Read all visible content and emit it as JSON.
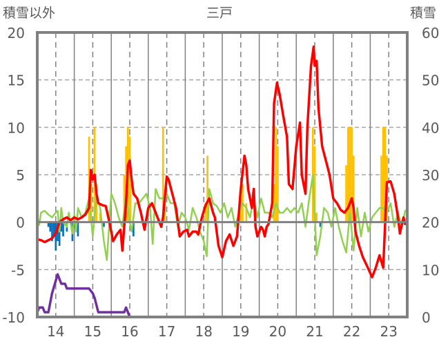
{
  "chart_data": {
    "type": "line",
    "title": "三戸",
    "ylabel_left": "積雪以外",
    "ylabel_right": "積雪",
    "xlim": [
      13.5,
      23.5
    ],
    "ylim_left": [
      -10,
      20
    ],
    "ylim_right": [
      0,
      60
    ],
    "x_ticks": [
      "14",
      "15",
      "16",
      "17",
      "18",
      "19",
      "20",
      "21",
      "22",
      "23"
    ],
    "left_ticks": [
      "20",
      "15",
      "10",
      "5",
      "0",
      "-5",
      "-10"
    ],
    "right_ticks": [
      "60",
      "50",
      "40",
      "30",
      "20",
      "10",
      "0"
    ],
    "grid": true,
    "colors": {
      "red": "#ff0000",
      "green": "#92d050",
      "orange": "#ffc000",
      "blue": "#0070c0",
      "purple": "#7030a0",
      "axis": "#808080"
    },
    "series": [
      {
        "name": "red",
        "axis": "left",
        "points": [
          [
            13.5,
            -1.8
          ],
          [
            13.6,
            -1.9
          ],
          [
            13.7,
            -2.1
          ],
          [
            13.8,
            -1.9
          ],
          [
            13.9,
            -1.7
          ],
          [
            14.0,
            -1.2
          ],
          [
            14.1,
            0
          ],
          [
            14.2,
            0.3
          ],
          [
            14.3,
            0.5
          ],
          [
            14.4,
            0.2
          ],
          [
            14.5,
            0.5
          ],
          [
            14.6,
            0.3
          ],
          [
            14.7,
            0.5
          ],
          [
            14.8,
            0.8
          ],
          [
            14.9,
            1.5
          ],
          [
            14.95,
            5.5
          ],
          [
            15.0,
            4.5
          ],
          [
            15.05,
            5.0
          ],
          [
            15.1,
            3
          ],
          [
            15.15,
            2
          ],
          [
            15.25,
            1.8
          ],
          [
            15.35,
            1.7
          ],
          [
            15.45,
            0
          ],
          [
            15.55,
            -2.0
          ],
          [
            15.65,
            -1.3
          ],
          [
            15.75,
            -0.8
          ],
          [
            15.8,
            -3.0
          ],
          [
            15.85,
            -0.5
          ],
          [
            15.9,
            2
          ],
          [
            15.95,
            6.0
          ],
          [
            16.0,
            6.5
          ],
          [
            16.05,
            4.5
          ],
          [
            16.1,
            3
          ],
          [
            16.2,
            2.5
          ],
          [
            16.3,
            1.0
          ],
          [
            16.4,
            -0.8
          ],
          [
            16.5,
            1.5
          ],
          [
            16.6,
            2.0
          ],
          [
            16.7,
            1.0
          ],
          [
            16.8,
            0
          ],
          [
            16.85,
            -0.5
          ],
          [
            16.9,
            0.5
          ],
          [
            17.0,
            4.8
          ],
          [
            17.05,
            4.5
          ],
          [
            17.15,
            3.0
          ],
          [
            17.25,
            1.5
          ],
          [
            17.3,
            0
          ],
          [
            17.35,
            -1.5
          ],
          [
            17.45,
            -1.0
          ],
          [
            17.55,
            -0.8
          ],
          [
            17.6,
            -1.5
          ],
          [
            17.7,
            -1.0
          ],
          [
            17.8,
            -1.0
          ],
          [
            17.85,
            -1.3
          ],
          [
            17.95,
            0.5
          ],
          [
            18.05,
            1.8
          ],
          [
            18.15,
            2.5
          ],
          [
            18.25,
            1.0
          ],
          [
            18.3,
            0.5
          ],
          [
            18.4,
            -2.5
          ],
          [
            18.5,
            -3.7
          ],
          [
            18.6,
            -2.0
          ],
          [
            18.7,
            -1.3
          ],
          [
            18.8,
            -2.5
          ],
          [
            18.9,
            -1.5
          ],
          [
            19.0,
            3.5
          ],
          [
            19.1,
            7.0
          ],
          [
            19.15,
            6.0
          ],
          [
            19.2,
            3.5
          ],
          [
            19.3,
            1.5
          ],
          [
            19.35,
            3.5
          ],
          [
            19.4,
            -0.5
          ],
          [
            19.45,
            -1.5
          ],
          [
            19.55,
            -0.5
          ],
          [
            19.6,
            -0.8
          ],
          [
            19.65,
            -1.5
          ],
          [
            19.7,
            -0.5
          ],
          [
            19.75,
            -0.2
          ],
          [
            19.85,
            2
          ],
          [
            19.9,
            12.5
          ],
          [
            19.98,
            14.7
          ],
          [
            20.05,
            13.5
          ],
          [
            20.15,
            11.2
          ],
          [
            20.25,
            9.0
          ],
          [
            20.3,
            4.0
          ],
          [
            20.4,
            3.5
          ],
          [
            20.5,
            8
          ],
          [
            20.6,
            10.5
          ],
          [
            20.65,
            5.0
          ],
          [
            20.75,
            3.0
          ],
          [
            20.8,
            10
          ],
          [
            20.9,
            16.5
          ],
          [
            20.97,
            18.5
          ],
          [
            21.0,
            16.5
          ],
          [
            21.05,
            17.0
          ],
          [
            21.1,
            12
          ],
          [
            21.2,
            8
          ],
          [
            21.3,
            6.5
          ],
          [
            21.4,
            5
          ],
          [
            21.5,
            2.5
          ],
          [
            21.6,
            2.0
          ],
          [
            21.7,
            1.3
          ],
          [
            21.8,
            1.0
          ],
          [
            21.9,
            1.5
          ],
          [
            22.0,
            2.5
          ],
          [
            22.05,
            1.5
          ],
          [
            22.1,
            -1.0
          ],
          [
            22.2,
            -2.5
          ],
          [
            22.3,
            -3.7
          ],
          [
            22.4,
            -4.5
          ],
          [
            22.55,
            -5.8
          ],
          [
            22.65,
            -4.8
          ],
          [
            22.75,
            -3.5
          ],
          [
            22.85,
            -4.8
          ],
          [
            22.95,
            4.2
          ],
          [
            23.05,
            4.3
          ],
          [
            23.15,
            3.0
          ],
          [
            23.25,
            0.5
          ],
          [
            23.3,
            -1.2
          ],
          [
            23.4,
            0.5
          ],
          [
            23.45,
            -0.3
          ]
        ]
      },
      {
        "name": "green",
        "axis": "left",
        "points": [
          [
            13.5,
            0.7
          ],
          [
            13.55,
            -0.3
          ],
          [
            13.6,
            1.0
          ],
          [
            13.7,
            1.2
          ],
          [
            13.8,
            0.8
          ],
          [
            13.9,
            0.5
          ],
          [
            14.0,
            1.0
          ],
          [
            14.05,
            1.2
          ],
          [
            14.1,
            -1.0
          ],
          [
            14.15,
            1.5
          ],
          [
            14.2,
            0
          ],
          [
            14.3,
            -0.5
          ],
          [
            14.35,
            1.0
          ],
          [
            14.45,
            -1.2
          ],
          [
            14.5,
            0.8
          ],
          [
            14.55,
            -1.0
          ],
          [
            14.6,
            1.5
          ],
          [
            14.7,
            0.5
          ],
          [
            14.8,
            1.0
          ],
          [
            14.9,
            2.5
          ],
          [
            15.0,
            -1.5
          ],
          [
            15.1,
            3.0
          ],
          [
            15.2,
            1.5
          ],
          [
            15.3,
            -2.0
          ],
          [
            15.38,
            -4.0
          ],
          [
            15.45,
            0
          ],
          [
            15.5,
            3.0
          ],
          [
            15.6,
            2.0
          ],
          [
            15.7,
            0.5
          ],
          [
            15.8,
            -0.5
          ],
          [
            15.9,
            3.0
          ],
          [
            16.0,
            0
          ],
          [
            16.05,
            -1.0
          ],
          [
            16.15,
            2.0
          ],
          [
            16.25,
            2.0
          ],
          [
            16.35,
            2.5
          ],
          [
            16.45,
            3.0
          ],
          [
            16.55,
            1.5
          ],
          [
            16.62,
            -2.3
          ],
          [
            16.7,
            3.5
          ],
          [
            16.8,
            2.5
          ],
          [
            16.9,
            2.5
          ],
          [
            17.0,
            3.0
          ],
          [
            17.1,
            2.0
          ],
          [
            17.2,
            2.0
          ],
          [
            17.3,
            -0.5
          ],
          [
            17.4,
            1.0
          ],
          [
            17.5,
            0.5
          ],
          [
            17.6,
            -0.8
          ],
          [
            17.7,
            1.5
          ],
          [
            17.8,
            0.5
          ],
          [
            17.9,
            -1.0
          ],
          [
            18.0,
            -2.0
          ],
          [
            18.08,
            -3.6
          ],
          [
            18.15,
            3.5
          ],
          [
            18.25,
            2.0
          ],
          [
            18.35,
            1.7
          ],
          [
            18.45,
            1.0
          ],
          [
            18.55,
            2.0
          ],
          [
            18.65,
            0.5
          ],
          [
            18.75,
            1.5
          ],
          [
            18.85,
            -0.5
          ],
          [
            18.95,
            1.0
          ],
          [
            19.05,
            2.0
          ],
          [
            19.15,
            1.5
          ],
          [
            19.25,
            0.5
          ],
          [
            19.35,
            2.5
          ],
          [
            19.45,
            0.5
          ],
          [
            19.55,
            2.5
          ],
          [
            19.65,
            1.0
          ],
          [
            19.75,
            1.0
          ],
          [
            19.85,
            0.5
          ],
          [
            19.95,
            2.0
          ],
          [
            20.05,
            1.0
          ],
          [
            20.15,
            1.0
          ],
          [
            20.25,
            1.5
          ],
          [
            20.35,
            1.0
          ],
          [
            20.45,
            1.5
          ],
          [
            20.55,
            1.0
          ],
          [
            20.65,
            2.0
          ],
          [
            20.75,
            -0.5
          ],
          [
            20.85,
            2.5
          ],
          [
            20.95,
            5.0
          ],
          [
            21.05,
            -3.5
          ],
          [
            21.15,
            -1.5
          ],
          [
            21.25,
            1.5
          ],
          [
            21.35,
            1.0
          ],
          [
            21.45,
            -0.5
          ],
          [
            21.55,
            1.5
          ],
          [
            21.65,
            -0.5
          ],
          [
            21.75,
            -2.0
          ],
          [
            21.85,
            -3.2
          ],
          [
            21.95,
            1.0
          ],
          [
            22.05,
            -3.0
          ],
          [
            22.15,
            1.5
          ],
          [
            22.25,
            -1.5
          ],
          [
            22.35,
            1.0
          ],
          [
            22.45,
            -1.0
          ],
          [
            22.55,
            0.5
          ],
          [
            22.65,
            1.0
          ],
          [
            22.75,
            1.5
          ],
          [
            22.85,
            1.5
          ],
          [
            22.95,
            1.0
          ],
          [
            23.05,
            2.0
          ],
          [
            23.15,
            -0.5
          ],
          [
            23.25,
            1.0
          ],
          [
            23.35,
            -0.5
          ],
          [
            23.45,
            1.3
          ]
        ]
      },
      {
        "name": "purple",
        "axis": "right",
        "points": [
          [
            13.5,
            1
          ],
          [
            13.55,
            2
          ],
          [
            13.65,
            2
          ],
          [
            13.7,
            1
          ],
          [
            13.8,
            1
          ],
          [
            13.9,
            5
          ],
          [
            14.05,
            9
          ],
          [
            14.15,
            7
          ],
          [
            14.25,
            7
          ],
          [
            14.3,
            6
          ],
          [
            14.9,
            6
          ],
          [
            15.0,
            5
          ],
          [
            15.05,
            4
          ],
          [
            15.15,
            1
          ],
          [
            15.85,
            1
          ],
          [
            15.9,
            2
          ],
          [
            15.95,
            1
          ],
          [
            16.0,
            0
          ],
          [
            23.5,
            0
          ]
        ]
      },
      {
        "name": "orange",
        "type": "bar",
        "axis": "left",
        "points": [
          [
            14.9,
            9
          ],
          [
            14.95,
            4
          ],
          [
            15.05,
            10
          ],
          [
            15.1,
            4
          ],
          [
            15.2,
            1
          ],
          [
            15.85,
            5
          ],
          [
            15.9,
            8
          ],
          [
            15.95,
            10
          ],
          [
            16.0,
            9
          ],
          [
            16.02,
            4
          ],
          [
            16.9,
            10
          ],
          [
            16.95,
            3
          ],
          [
            18.05,
            2
          ],
          [
            18.1,
            7
          ],
          [
            19.0,
            2
          ],
          [
            19.05,
            4
          ],
          [
            19.15,
            2
          ],
          [
            19.9,
            4
          ],
          [
            19.95,
            10
          ],
          [
            20.0,
            8
          ],
          [
            20.95,
            10
          ],
          [
            21.0,
            8
          ],
          [
            21.05,
            1
          ],
          [
            21.85,
            6
          ],
          [
            21.9,
            10
          ],
          [
            21.95,
            10
          ],
          [
            22.0,
            10
          ],
          [
            22.05,
            7
          ],
          [
            22.8,
            7
          ],
          [
            22.85,
            10
          ],
          [
            22.9,
            10
          ],
          [
            22.95,
            7
          ]
        ]
      },
      {
        "name": "blue",
        "type": "bar",
        "axis": "left",
        "points": [
          [
            13.8,
            -0.5
          ],
          [
            13.85,
            -1.0
          ],
          [
            13.9,
            -2.0
          ],
          [
            13.95,
            -1.5
          ],
          [
            14.0,
            -3.0
          ],
          [
            14.05,
            -2.0
          ],
          [
            14.1,
            -2.5
          ],
          [
            14.15,
            -1.0
          ],
          [
            14.2,
            -1.5
          ],
          [
            14.3,
            -1.0
          ],
          [
            14.45,
            -2.0
          ],
          [
            14.5,
            -0.5
          ],
          [
            14.6,
            -1.5
          ],
          [
            15.3,
            -0.5
          ],
          [
            16.1,
            -1.5
          ],
          [
            21.15,
            -0.5
          ]
        ]
      }
    ]
  }
}
